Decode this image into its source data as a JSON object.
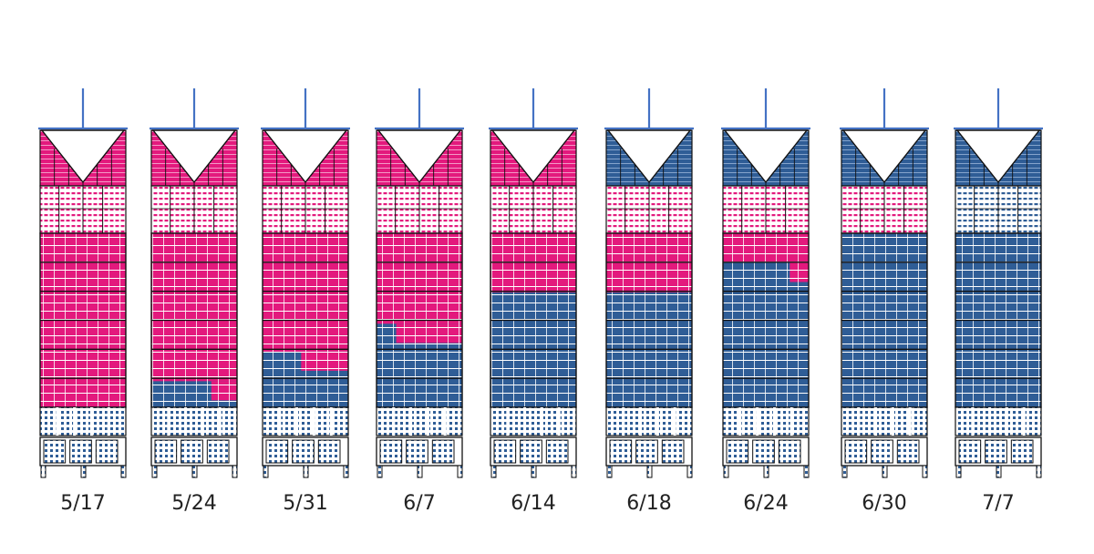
{
  "colors": {
    "pink": "#e3197d",
    "pink_light": "#ef78b0",
    "blue": "#2f5d96",
    "blue_light": "#6f93c2",
    "mast": "#4472c4",
    "outline": "#111111"
  },
  "building_zones": [
    "crown",
    "upper_plant",
    "office",
    "lower_plant",
    "podium"
  ],
  "snapshots": [
    {
      "date": "5/17",
      "crown": "pink",
      "upper_plant": "pink",
      "office_pink_fraction": 1.0,
      "office_pink_partial_right": 0
    },
    {
      "date": "5/24",
      "crown": "pink",
      "upper_plant": "pink",
      "office_pink_fraction": 0.85,
      "office_pink_partial_right": 0.3
    },
    {
      "date": "5/31",
      "crown": "pink",
      "upper_plant": "pink",
      "office_pink_fraction": 0.68,
      "office_pink_partial_right": 0.55
    },
    {
      "date": "6/7",
      "crown": "pink",
      "upper_plant": "pink",
      "office_pink_fraction": 0.52,
      "office_pink_partial_right": 0.77
    },
    {
      "date": "6/14",
      "crown": "pink",
      "upper_plant": "pink",
      "office_pink_fraction": 0.34,
      "office_pink_partial_right": 0
    },
    {
      "date": "6/18",
      "crown": "blue",
      "upper_plant": "pink",
      "office_pink_fraction": 0.34,
      "office_pink_partial_right": 0
    },
    {
      "date": "6/24",
      "crown": "blue",
      "upper_plant": "pink",
      "office_pink_fraction": 0.17,
      "office_pink_partial_right": 0.22
    },
    {
      "date": "6/30",
      "crown": "blue",
      "upper_plant": "pink",
      "office_pink_fraction": 0.0,
      "office_pink_partial_right": 0
    },
    {
      "date": "7/7",
      "crown": "blue",
      "upper_plant": "blue",
      "office_pink_fraction": 0.0,
      "office_pink_partial_right": 0
    }
  ]
}
